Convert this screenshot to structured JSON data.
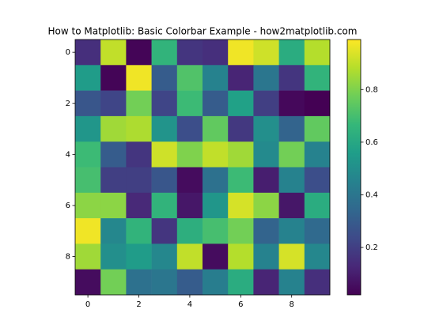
{
  "chart_data": {
    "type": "heatmap",
    "title": "How to Matplotlib: Basic Colorbar Example - how2matplotlib.com",
    "colormap": "viridis",
    "values": [
      [
        0.15,
        0.9,
        0.03,
        0.65,
        0.17,
        0.15,
        0.97,
        0.92,
        0.62,
        0.88
      ],
      [
        0.55,
        0.03,
        0.97,
        0.3,
        0.72,
        0.45,
        0.12,
        0.4,
        0.17,
        0.65
      ],
      [
        0.28,
        0.22,
        0.78,
        0.22,
        0.68,
        0.3,
        0.57,
        0.2,
        0.04,
        0.02
      ],
      [
        0.53,
        0.85,
        0.87,
        0.52,
        0.25,
        0.75,
        0.18,
        0.5,
        0.33,
        0.75
      ],
      [
        0.68,
        0.3,
        0.17,
        0.92,
        0.8,
        0.9,
        0.85,
        0.48,
        0.78,
        0.45
      ],
      [
        0.7,
        0.2,
        0.2,
        0.28,
        0.05,
        0.38,
        0.68,
        0.1,
        0.45,
        0.25
      ],
      [
        0.82,
        0.82,
        0.13,
        0.65,
        0.08,
        0.53,
        0.93,
        0.82,
        0.08,
        0.62
      ],
      [
        0.97,
        0.47,
        0.65,
        0.17,
        0.63,
        0.7,
        0.78,
        0.33,
        0.45,
        0.35
      ],
      [
        0.85,
        0.5,
        0.55,
        0.47,
        0.9,
        0.05,
        0.88,
        0.45,
        0.93,
        0.47
      ],
      [
        0.05,
        0.78,
        0.38,
        0.4,
        0.3,
        0.43,
        0.62,
        0.12,
        0.45,
        0.15
      ]
    ],
    "xlim": [
      -0.5,
      9.5
    ],
    "ylim": [
      9.5,
      -0.5
    ],
    "xticks": [
      0,
      2,
      4,
      6,
      8
    ],
    "yticks": [
      0,
      2,
      4,
      6,
      8
    ],
    "clim": [
      0.02,
      0.99
    ],
    "cticks": [
      0.2,
      0.4,
      0.6,
      0.8
    ]
  }
}
